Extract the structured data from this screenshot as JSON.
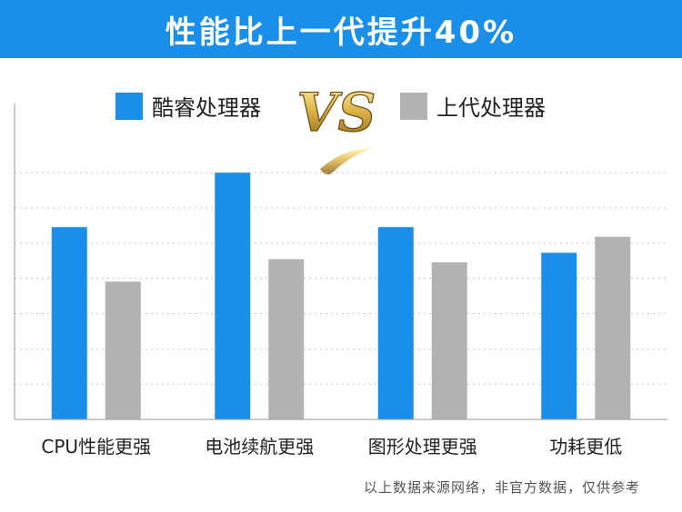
{
  "banner": {
    "title": "性能比上一代提升40%",
    "color": "#1a8fea"
  },
  "vs_logo": {
    "text": "VS",
    "color": "#c9a23c"
  },
  "footnote": "以上数据来源网络，非官方数据，仅供参考",
  "chart_data": {
    "type": "bar",
    "title": "",
    "xlabel": "",
    "ylabel": "",
    "ylim": [
      0,
      100
    ],
    "grid": true,
    "legend_position": "top",
    "categories": [
      "CPU性能更强",
      "电池续航更强",
      "图形处理更强",
      "功耗更低"
    ],
    "series": [
      {
        "name": "酷睿处理器",
        "color": "#1a8fea",
        "values": [
          60,
          77,
          60,
          52
        ]
      },
      {
        "name": "上代处理器",
        "color": "#b3b3b3",
        "values": [
          43,
          50,
          49,
          57
        ]
      }
    ]
  }
}
